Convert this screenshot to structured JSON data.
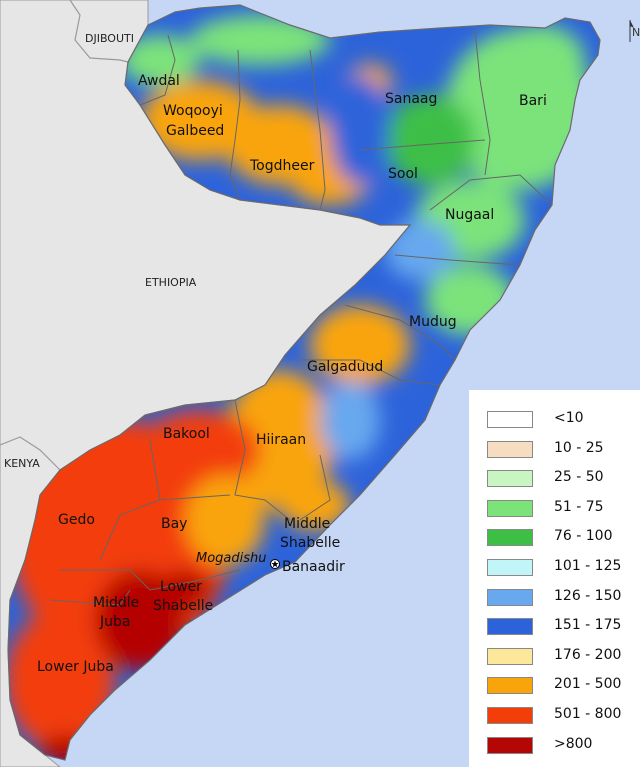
{
  "map": {
    "countries": {
      "djibouti": "DJIBOUTI",
      "ethiopia": "ETHIOPIA",
      "kenya": "KENYA"
    },
    "regions": {
      "awdal": "Awdal",
      "woqooyi_galbeed_line1": "Woqooyi",
      "woqooyi_galbeed_line2": "Galbeed",
      "togdheer": "Togdheer",
      "sanaag": "Sanaag",
      "bari": "Bari",
      "sool": "Sool",
      "nugaal": "Nugaal",
      "mudug": "Mudug",
      "galgaduud": "Galgaduud",
      "bakool": "Bakool",
      "hiiraan": "Hiiraan",
      "gedo": "Gedo",
      "bay": "Bay",
      "middle_shabelle_line1": "Middle",
      "middle_shabelle_line2": "Shabelle",
      "banaadir": "Banaadir",
      "lower_shabelle_line1": "Lower",
      "lower_shabelle_line2": "Shabelle",
      "middle_juba_line1": "Middle",
      "middle_juba_line2": "Juba",
      "lower_juba": "Lower Juba"
    },
    "city": "Mogadishu",
    "north_arrow": "N"
  },
  "legend": {
    "items": [
      {
        "label": "<10",
        "color": "#ffffff"
      },
      {
        "label": "10 - 25",
        "color": "#f6dcc0"
      },
      {
        "label": "25 - 50",
        "color": "#c9f5c2"
      },
      {
        "label": "51 - 75",
        "color": "#7be37a"
      },
      {
        "label": "76 - 100",
        "color": "#3dbf46"
      },
      {
        "label": "101 - 125",
        "color": "#c2f5f8"
      },
      {
        "label": "126 - 150",
        "color": "#67a8ee"
      },
      {
        "label": "151 - 175",
        "color": "#2d63da"
      },
      {
        "label": "176 - 200",
        "color": "#fce79a"
      },
      {
        "label": "201 - 500",
        "color": "#f9a40a"
      },
      {
        "label": "501 - 800",
        "color": "#f33e0a"
      },
      {
        "label": ">800",
        "color": "#b50606"
      }
    ]
  },
  "colors": {
    "sea": "#c6d7f5",
    "land_neighbors": "#e6e6e6"
  }
}
